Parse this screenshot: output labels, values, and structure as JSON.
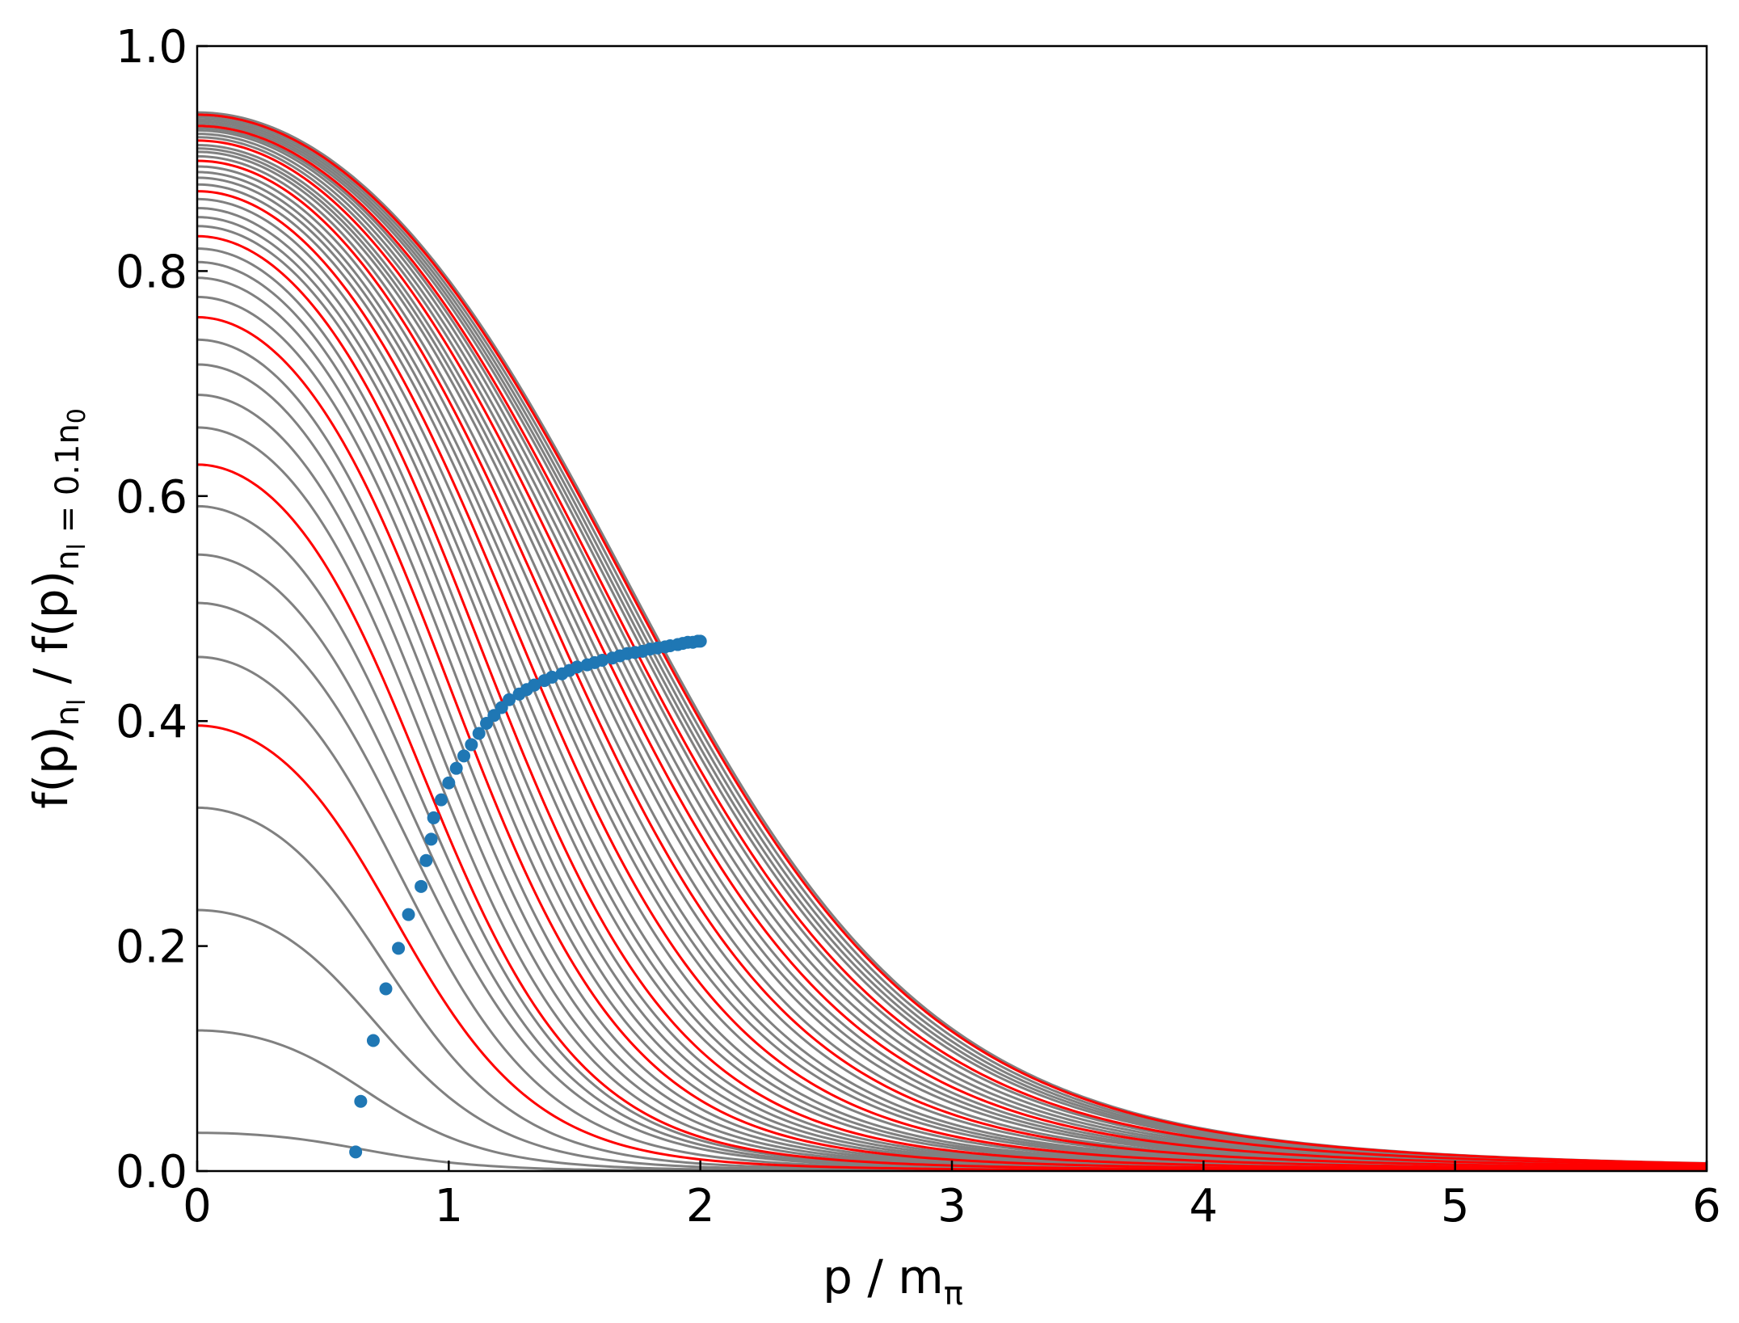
{
  "chart_data": {
    "type": "line",
    "title": "",
    "xlabel": "p / m",
    "xlabel_sub": "π",
    "ylabel_parts": {
      "a": "f(p)",
      "a_sub": "n",
      "a_subsub": "l",
      "b": " / f(p)",
      "b_sub": "n",
      "b_subsub": "l",
      "b_sub2": " = 0.1n",
      "b_subsub2": "0"
    },
    "xlim": [
      0,
      6
    ],
    "ylim": [
      0,
      1
    ],
    "xticks": [
      "0",
      "1",
      "2",
      "3",
      "4",
      "5",
      "6"
    ],
    "yticks": [
      "0.0",
      "0.2",
      "0.4",
      "0.6",
      "0.8",
      "1.0"
    ],
    "grid": false,
    "legend": "none",
    "colors": {
      "highlight": "#ff0000",
      "curves": "#808080",
      "points": "#1f77b4"
    },
    "curve_family": {
      "count": 46,
      "highlighted_indices": [
        4,
        9,
        14,
        19,
        24,
        29,
        34,
        39,
        44
      ],
      "peak_values": [
        0.034,
        0.125,
        0.232,
        0.323,
        0.396,
        0.457,
        0.505,
        0.548,
        0.591,
        0.628,
        0.661,
        0.69,
        0.717,
        0.739,
        0.759,
        0.777,
        0.794,
        0.808,
        0.82,
        0.831,
        0.84,
        0.848,
        0.856,
        0.864,
        0.871,
        0.877,
        0.883,
        0.888,
        0.893,
        0.898,
        0.902,
        0.906,
        0.909,
        0.912,
        0.916,
        0.919,
        0.922,
        0.925,
        0.927,
        0.929,
        0.931,
        0.933,
        0.935,
        0.937,
        0.939,
        0.941
      ],
      "half_points": [
        0.63,
        0.65,
        0.7,
        0.75,
        0.8,
        0.84,
        0.89,
        0.91,
        0.93,
        0.94,
        0.97,
        1.0,
        1.03,
        1.06,
        1.09,
        1.12,
        1.15,
        1.18,
        1.21,
        1.24,
        1.28,
        1.31,
        1.34,
        1.38,
        1.41,
        1.45,
        1.48,
        1.51,
        1.55,
        1.58,
        1.61,
        1.65,
        1.68,
        1.71,
        1.74,
        1.77,
        1.8,
        1.83,
        1.86,
        1.88,
        1.91,
        1.93,
        1.95,
        1.97,
        1.99,
        2.0
      ],
      "tail_value_at_x6": 0.013
    },
    "points": {
      "x": [
        0.63,
        0.65,
        0.7,
        0.75,
        0.8,
        0.84,
        0.89,
        0.91,
        0.93,
        0.94,
        0.97,
        1.0,
        1.03,
        1.06,
        1.09,
        1.12,
        1.15,
        1.18,
        1.21,
        1.24,
        1.28,
        1.31,
        1.34,
        1.38,
        1.41,
        1.45,
        1.48,
        1.51,
        1.55,
        1.58,
        1.61,
        1.65,
        1.68,
        1.71,
        1.74,
        1.77,
        1.8,
        1.83,
        1.86,
        1.88,
        1.91,
        1.93,
        1.95,
        1.97,
        1.99,
        2.0
      ],
      "y": [
        0.017,
        0.062,
        0.116,
        0.162,
        0.198,
        0.228,
        0.253,
        0.276,
        0.295,
        0.314,
        0.33,
        0.345,
        0.358,
        0.369,
        0.379,
        0.389,
        0.398,
        0.405,
        0.412,
        0.419,
        0.424,
        0.428,
        0.432,
        0.436,
        0.439,
        0.442,
        0.445,
        0.448,
        0.45,
        0.452,
        0.454,
        0.456,
        0.458,
        0.46,
        0.461,
        0.462,
        0.464,
        0.465,
        0.466,
        0.467,
        0.468,
        0.469,
        0.47,
        0.47,
        0.471,
        0.471
      ]
    }
  }
}
